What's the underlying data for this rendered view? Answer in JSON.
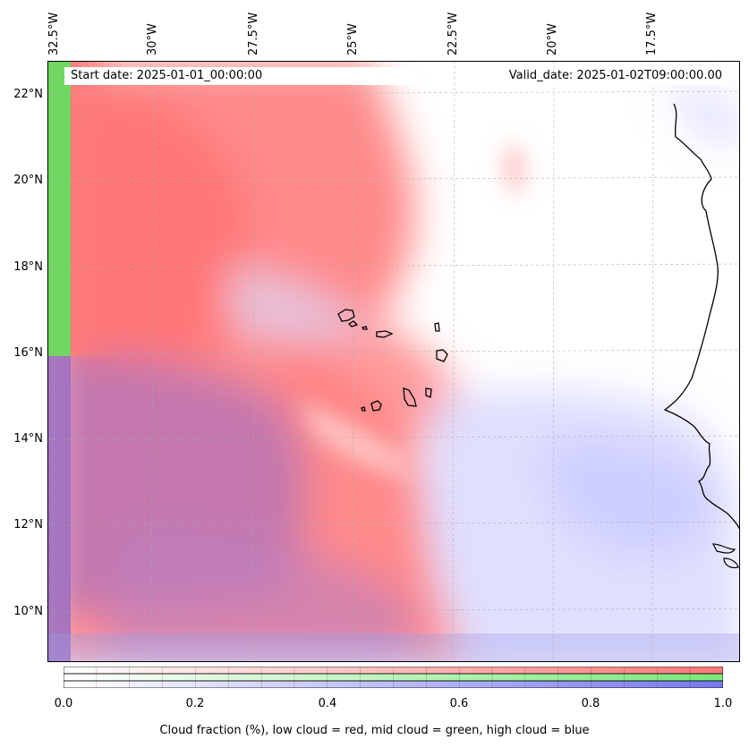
{
  "map": {
    "lon_labels": [
      "32.5°W",
      "30°W",
      "27.5°W",
      "25°W",
      "22.5°W",
      "20°W",
      "17.5°W"
    ],
    "lat_labels": [
      "22°N",
      "20°N",
      "18°N",
      "16°N",
      "14°N",
      "12°N",
      "10°N"
    ],
    "start_date": "Start date: 2025-01-01_00:00:00",
    "valid_date": "Valid_date: 2025-01-02T09:00:00.00"
  },
  "colorbar": {
    "ticks": [
      "0.0",
      "0.2",
      "0.4",
      "0.6",
      "0.8",
      "1.0"
    ],
    "caption": "Cloud fraction (%), low cloud = red, mid cloud = green, high cloud = blue",
    "colors": {
      "low": "#ff7878",
      "mid": "#78e878",
      "high": "#7878ee"
    }
  }
}
